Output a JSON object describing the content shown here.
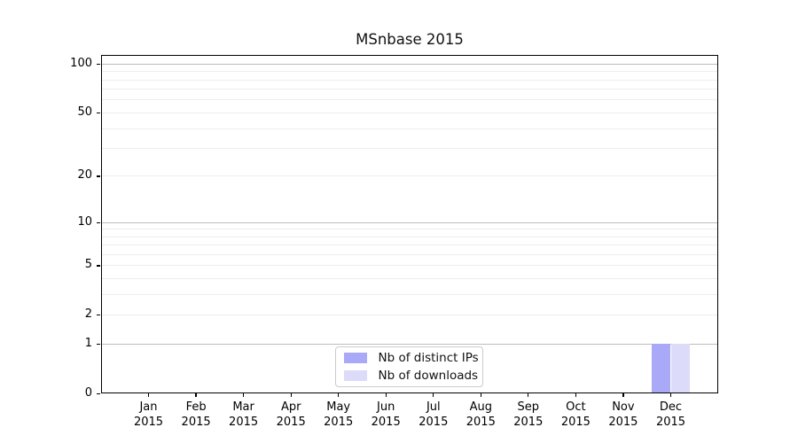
{
  "title": "MSnbase 2015",
  "chart_data": {
    "type": "bar",
    "title": "MSnbase 2015",
    "categories": [
      "Jan",
      "Feb",
      "Mar",
      "Apr",
      "May",
      "Jun",
      "Jul",
      "Aug",
      "Sep",
      "Oct",
      "Nov",
      "Dec"
    ],
    "year": "2015",
    "series": [
      {
        "name": "Nb of distinct IPs",
        "color": "#a9a9f7",
        "values": [
          0,
          0,
          0,
          0,
          0,
          0,
          0,
          0,
          0,
          0,
          0,
          1
        ]
      },
      {
        "name": "Nb of downloads",
        "color": "#dcdcfa",
        "values": [
          0,
          0,
          0,
          0,
          0,
          0,
          0,
          0,
          0,
          0,
          0,
          1
        ]
      }
    ],
    "y_axis": {
      "scale": "log1p",
      "range": [
        0,
        100
      ],
      "tick_values": [
        0,
        1,
        2,
        5,
        10,
        20,
        50,
        100
      ],
      "tick_labels": [
        "0",
        "1",
        "2",
        "5",
        "10",
        "20",
        "50",
        "100"
      ],
      "major_grid_values": [
        1,
        10,
        100
      ],
      "minor_grid_values": [
        2,
        3,
        4,
        5,
        6,
        7,
        8,
        9,
        20,
        30,
        40,
        50,
        60,
        70,
        80,
        90
      ]
    },
    "grid": "horizontal",
    "legend_position": "lower center (inside plot)"
  },
  "legend": {
    "items": [
      {
        "label": "Nb of distinct IPs",
        "color": "#a9a9f7"
      },
      {
        "label": "Nb of downloads",
        "color": "#dcdcfa"
      }
    ]
  },
  "colors": {
    "background": "#ffffff",
    "axis": "#000000",
    "grid_major": "#bdbdbd",
    "grid_minor": "#ededed",
    "legend_border": "#cccccc"
  }
}
